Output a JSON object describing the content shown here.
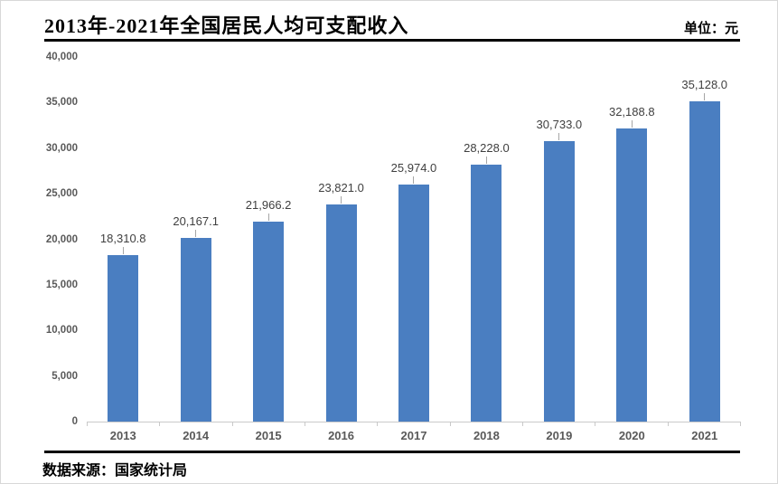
{
  "chart_data": {
    "type": "bar",
    "title": "2013年-2021年全国居民人均可支配收入",
    "unit_label": "单位：元",
    "source_label": "数据来源：国家统计局",
    "categories": [
      "2013",
      "2014",
      "2015",
      "2016",
      "2017",
      "2018",
      "2019",
      "2020",
      "2021"
    ],
    "values": [
      18310.8,
      20167.1,
      21966.2,
      23821.0,
      25974.0,
      28228.0,
      30733.0,
      32188.8,
      35128.0
    ],
    "value_labels": [
      "18,310.8",
      "20,167.1",
      "21,966.2",
      "23,821.0",
      "25,974.0",
      "28,228.0",
      "30,733.0",
      "32,188.8",
      "35,128.0"
    ],
    "ylim": [
      0,
      40000
    ],
    "ytick_interval": 5000,
    "ytick_labels_top_to_bottom": [
      "40,000",
      "35,000",
      "30,000",
      "25,000",
      "20,000",
      "15,000",
      "10,000",
      "5,000",
      "0"
    ],
    "grid": false,
    "legend": "none",
    "bar_color": "#4a7ec1",
    "axis_color": "#c9c9c9",
    "axis_text_color": "#595959",
    "value_label_color": "#3f3f3f"
  }
}
